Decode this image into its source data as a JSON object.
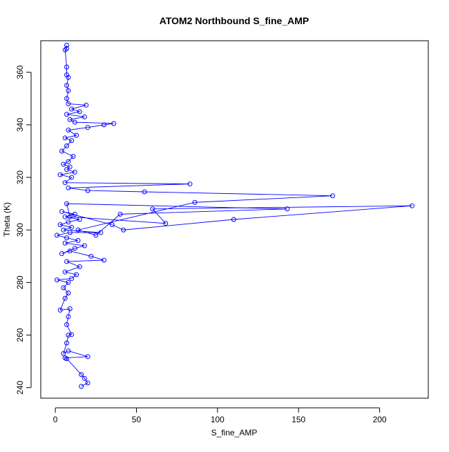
{
  "chart_data": {
    "type": "line",
    "title": "ATOM2 Northbound S_fine_AMP",
    "xlabel": "S_fine_AMP",
    "ylabel": "Theta (K)",
    "xlim": [
      -9,
      230
    ],
    "ylim": [
      236,
      372
    ],
    "x_ticks": [
      0,
      50,
      100,
      150,
      200
    ],
    "y_ticks": [
      240,
      260,
      280,
      300,
      320,
      340,
      360
    ],
    "grid": false,
    "legend": "none",
    "series_color": "#0000ff",
    "marker": "open-circle",
    "series": [
      {
        "points": [
          [
            16,
            240.5
          ],
          [
            20,
            241.8
          ],
          [
            18,
            243.5
          ],
          [
            16,
            245
          ],
          [
            7,
            251
          ],
          [
            6,
            251.3
          ],
          [
            20,
            251.8
          ],
          [
            8,
            254
          ],
          [
            5,
            253
          ],
          [
            7,
            257
          ],
          [
            8,
            260
          ],
          [
            10,
            260.2
          ],
          [
            7,
            264
          ],
          [
            8,
            267
          ],
          [
            9,
            270
          ],
          [
            3,
            269.5
          ],
          [
            6,
            274
          ],
          [
            8,
            276
          ],
          [
            5,
            278
          ],
          [
            8,
            280
          ],
          [
            1,
            281
          ],
          [
            10,
            281.5
          ],
          [
            13,
            283
          ],
          [
            6,
            284
          ],
          [
            15,
            286
          ],
          [
            7,
            288
          ],
          [
            30,
            288.5
          ],
          [
            22,
            290
          ],
          [
            9,
            292
          ],
          [
            4,
            291
          ],
          [
            12,
            293
          ],
          [
            18,
            294
          ],
          [
            6,
            295
          ],
          [
            14,
            296
          ],
          [
            7,
            297
          ],
          [
            1,
            298
          ],
          [
            9,
            299
          ],
          [
            28,
            299
          ],
          [
            5,
            300
          ],
          [
            10,
            301
          ],
          [
            3,
            302
          ],
          [
            8,
            303
          ],
          [
            15,
            304
          ],
          [
            6,
            305
          ],
          [
            12,
            306
          ],
          [
            4,
            307
          ],
          [
            35,
            302
          ],
          [
            42,
            300
          ],
          [
            110,
            304
          ],
          [
            220,
            309.2
          ],
          [
            60,
            308
          ],
          [
            68,
            302.5
          ],
          [
            9,
            305
          ],
          [
            7,
            310
          ],
          [
            143,
            308
          ],
          [
            40,
            306
          ],
          [
            25,
            298
          ],
          [
            14,
            300
          ],
          [
            86,
            310.5
          ],
          [
            171,
            313
          ],
          [
            55,
            314.5
          ],
          [
            20,
            315
          ],
          [
            8,
            316
          ],
          [
            83,
            317.5
          ],
          [
            6,
            318
          ],
          [
            10,
            320
          ],
          [
            3,
            321
          ],
          [
            12,
            322
          ],
          [
            7,
            323
          ],
          [
            9,
            324
          ],
          [
            5,
            325
          ],
          [
            8,
            326
          ],
          [
            11,
            328
          ],
          [
            4,
            330
          ],
          [
            7,
            332
          ],
          [
            10,
            334
          ],
          [
            6,
            335
          ],
          [
            13,
            336
          ],
          [
            8,
            338
          ],
          [
            20,
            339
          ],
          [
            30,
            340
          ],
          [
            36,
            340.5
          ],
          [
            12,
            341
          ],
          [
            9,
            342
          ],
          [
            18,
            343
          ],
          [
            7,
            344
          ],
          [
            15,
            345
          ],
          [
            10,
            346
          ],
          [
            19,
            347.5
          ],
          [
            8,
            348
          ],
          [
            7,
            350
          ],
          [
            8,
            353
          ],
          [
            7,
            355
          ],
          [
            8,
            358
          ],
          [
            7,
            359
          ],
          [
            7,
            362
          ],
          [
            6,
            368.5
          ],
          [
            7,
            369
          ],
          [
            7,
            370.3
          ]
        ]
      }
    ]
  }
}
